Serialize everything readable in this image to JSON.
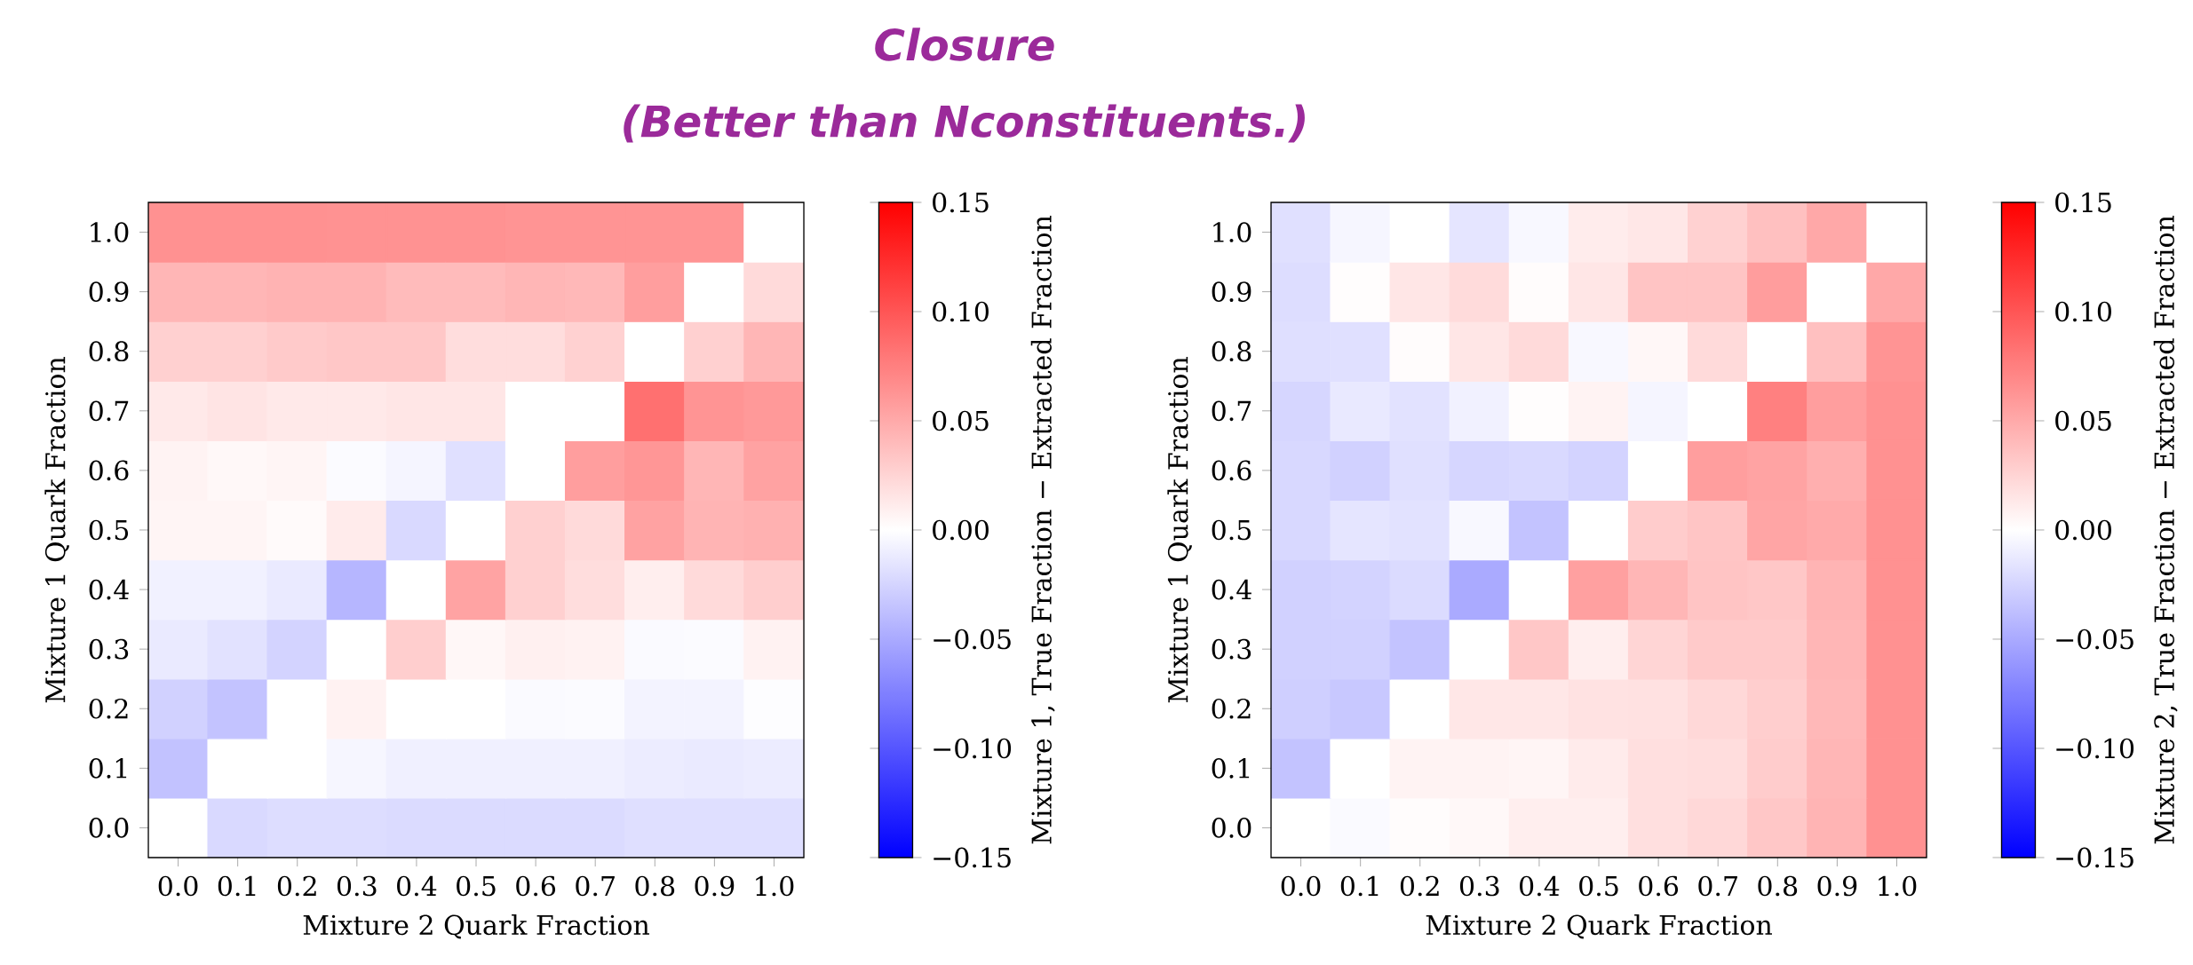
{
  "chart_data": [
    {
      "type": "other",
      "title": "Closure",
      "subtitle": "(Better than Nconstituents.)"
    },
    {
      "type": "heatmap",
      "xlabel": "Mixture 2 Quark Fraction",
      "ylabel": "Mixture 1 Quark Fraction",
      "clabel": "Mixture 1, True Fraction − Extracted Fraction",
      "categories": [
        "0.0",
        "0.1",
        "0.2",
        "0.3",
        "0.4",
        "0.5",
        "0.6",
        "0.7",
        "0.8",
        "0.9",
        "1.0"
      ],
      "y_categories": [
        "1.0",
        "0.9",
        "0.8",
        "0.7",
        "0.6",
        "0.5",
        "0.4",
        "0.3",
        "0.2",
        "0.1",
        "0.0"
      ],
      "cells": [
        [
          0.065,
          0.065,
          0.065,
          0.064,
          0.064,
          0.064,
          0.063,
          0.063,
          0.063,
          0.063,
          0.0
        ],
        [
          0.043,
          0.043,
          0.045,
          0.045,
          0.04,
          0.04,
          0.043,
          0.042,
          0.057,
          0.0,
          0.022
        ],
        [
          0.028,
          0.028,
          0.031,
          0.033,
          0.033,
          0.02,
          0.02,
          0.027,
          0.0,
          0.028,
          0.043
        ],
        [
          0.013,
          0.016,
          0.013,
          0.013,
          0.015,
          0.015,
          0.0,
          0.0,
          0.084,
          0.063,
          0.06
        ],
        [
          0.007,
          0.004,
          0.006,
          -0.002,
          -0.006,
          -0.018,
          0.0,
          0.057,
          0.062,
          0.043,
          0.055
        ],
        [
          0.006,
          0.006,
          0.003,
          0.012,
          -0.022,
          0.0,
          0.028,
          0.022,
          0.055,
          0.044,
          0.046
        ],
        [
          -0.008,
          -0.008,
          -0.012,
          -0.043,
          0.0,
          0.054,
          0.028,
          0.02,
          0.01,
          0.022,
          0.029
        ],
        [
          -0.012,
          -0.017,
          -0.026,
          0.0,
          0.029,
          0.005,
          0.009,
          0.008,
          -0.003,
          -0.002,
          0.008
        ],
        [
          -0.027,
          -0.035,
          0.0,
          0.008,
          0.0,
          0.0,
          -0.003,
          -0.002,
          -0.007,
          -0.007,
          -0.001
        ],
        [
          -0.036,
          0.0,
          0.0,
          -0.005,
          -0.009,
          -0.009,
          -0.009,
          -0.009,
          -0.011,
          -0.012,
          -0.011
        ],
        [
          0.0,
          -0.022,
          -0.02,
          -0.02,
          -0.021,
          -0.021,
          -0.021,
          -0.021,
          -0.019,
          -0.019,
          -0.019
        ]
      ],
      "clim": [
        -0.15,
        0.15
      ],
      "cticks": [
        {
          "value": -0.15,
          "label": "−0.15"
        },
        {
          "value": -0.1,
          "label": "−0.10"
        },
        {
          "value": -0.05,
          "label": "−0.05"
        },
        {
          "value": 0,
          "label": "0.00"
        },
        {
          "value": 0.05,
          "label": "0.05"
        },
        {
          "value": 0.1,
          "label": "0.10"
        },
        {
          "value": 0.15,
          "label": "0.15"
        }
      ]
    },
    {
      "type": "heatmap",
      "xlabel": "Mixture 2 Quark Fraction",
      "ylabel": "Mixture 1 Quark Fraction",
      "clabel": "Mixture 2, True Fraction − Extracted Fraction",
      "categories": [
        "0.0",
        "0.1",
        "0.2",
        "0.3",
        "0.4",
        "0.5",
        "0.6",
        "0.7",
        "0.8",
        "0.9",
        "1.0"
      ],
      "y_categories": [
        "1.0",
        "0.9",
        "0.8",
        "0.7",
        "0.6",
        "0.5",
        "0.4",
        "0.3",
        "0.2",
        "0.1",
        "0.0"
      ],
      "cells": [
        [
          -0.018,
          -0.005,
          0.0,
          -0.015,
          -0.004,
          0.011,
          0.014,
          0.027,
          0.037,
          0.051,
          0.0
        ],
        [
          -0.02,
          0.001,
          0.015,
          0.021,
          0.002,
          0.015,
          0.035,
          0.035,
          0.058,
          0.0,
          0.051
        ],
        [
          -0.019,
          -0.018,
          0.002,
          0.015,
          0.022,
          -0.004,
          0.005,
          0.022,
          0.0,
          0.037,
          0.063
        ],
        [
          -0.024,
          -0.013,
          -0.017,
          -0.008,
          0.001,
          0.007,
          -0.006,
          0.0,
          0.075,
          0.057,
          0.065
        ],
        [
          -0.023,
          -0.027,
          -0.018,
          -0.024,
          -0.022,
          -0.026,
          0.0,
          0.057,
          0.054,
          0.047,
          0.065
        ],
        [
          -0.023,
          -0.015,
          -0.017,
          -0.004,
          -0.035,
          0.0,
          0.03,
          0.034,
          0.053,
          0.05,
          0.065
        ],
        [
          -0.027,
          -0.026,
          -0.021,
          -0.05,
          0.0,
          0.056,
          0.043,
          0.035,
          0.033,
          0.044,
          0.065
        ],
        [
          -0.027,
          -0.027,
          -0.035,
          0.0,
          0.033,
          0.01,
          0.025,
          0.031,
          0.031,
          0.043,
          0.065
        ],
        [
          -0.028,
          -0.032,
          0.0,
          0.014,
          0.014,
          0.017,
          0.018,
          0.023,
          0.029,
          0.042,
          0.065
        ],
        [
          -0.035,
          0.0,
          0.007,
          0.007,
          0.006,
          0.012,
          0.019,
          0.02,
          0.03,
          0.043,
          0.065
        ],
        [
          0.0,
          -0.003,
          0.002,
          0.004,
          0.01,
          0.01,
          0.019,
          0.023,
          0.033,
          0.044,
          0.065
        ]
      ],
      "clim": [
        -0.15,
        0.15
      ],
      "cticks": [
        {
          "value": -0.15,
          "label": "−0.15"
        },
        {
          "value": -0.1,
          "label": "−0.10"
        },
        {
          "value": -0.05,
          "label": "−0.05"
        },
        {
          "value": 0,
          "label": "0.00"
        },
        {
          "value": 0.05,
          "label": "0.05"
        },
        {
          "value": 0.1,
          "label": "0.10"
        },
        {
          "value": 0.15,
          "label": "0.15"
        }
      ]
    }
  ]
}
